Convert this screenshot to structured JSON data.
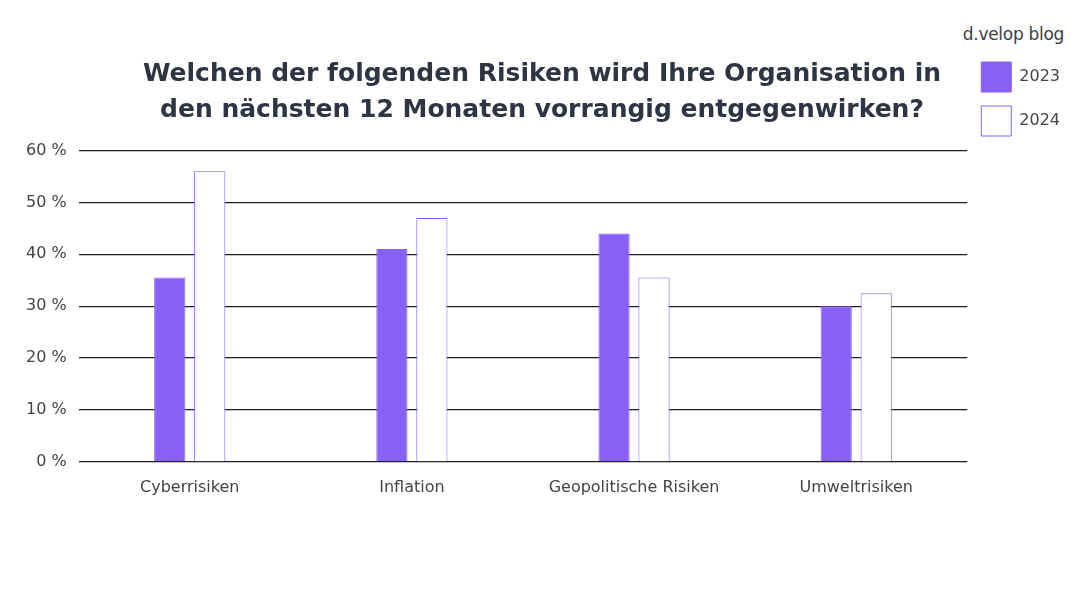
{
  "chart_data": {
    "type": "bar",
    "title": [
      "Welchen der folgenden Risiken wird Ihre Organisation in",
      "den nächsten 12 Monaten vorrangig entgegenwirken?"
    ],
    "annotations": [
      "d.velop blog"
    ],
    "categories": [
      "Cyberrisiken",
      "Inflation",
      "Geopolitische Risiken",
      "Umweltrisiken"
    ],
    "series": [
      {
        "name": "2023",
        "color": "#8761f7",
        "values": [
          35.5,
          41,
          44,
          30
        ]
      },
      {
        "name": "2024",
        "color": "#ffffff",
        "values": [
          56,
          47,
          35.5,
          32.5
        ]
      }
    ],
    "ylim": [
      0,
      60
    ],
    "yticks": [
      {
        "value": 0,
        "label": "0 %"
      },
      {
        "value": 10,
        "label": "10 %"
      },
      {
        "value": 20,
        "label": "20 %"
      },
      {
        "value": 30,
        "label": "30 %"
      },
      {
        "value": 40,
        "label": "40 %"
      },
      {
        "value": 50,
        "label": "50 %"
      },
      {
        "value": 60,
        "label": "60 %"
      }
    ],
    "grid": true,
    "legend": "top-right"
  }
}
